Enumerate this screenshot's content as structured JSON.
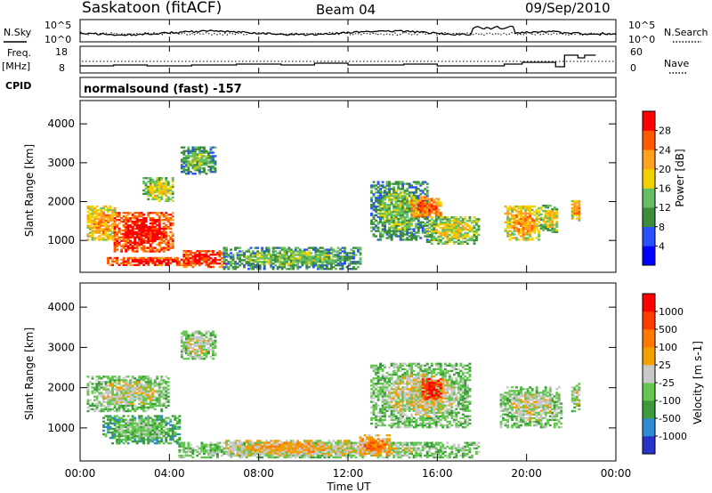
{
  "header": {
    "station": "Saskatoon (fitACF)",
    "beam": "Beam 04",
    "date": "09/Sep/2010"
  },
  "control_panels": {
    "nsky_label": "N.Sky",
    "nsearch_label": "N.Search",
    "nsky_ticks": [
      "10^5",
      "10^0"
    ],
    "nsearch_ticks": [
      "10^5",
      "10^0"
    ],
    "freq_label_1": "Freq.",
    "freq_label_2": "[MHz]",
    "freq_ticks": [
      "18",
      "8"
    ],
    "nave_label": "Nave",
    "nave_ticks": [
      "60",
      "0"
    ],
    "cpid_label": "CPID",
    "cpid_text": "normalsound (fast) -157"
  },
  "chart_data": [
    {
      "type": "heatmap",
      "name": "Power",
      "ylabel": "Slant Range [km]",
      "yticks": [
        "1000",
        "2000",
        "3000",
        "4000"
      ],
      "ylim": [
        180,
        4600
      ],
      "colorbar_label": "Power [dB]",
      "colorbar_ticks": [
        "4",
        "8",
        "12",
        "16",
        "20",
        "24",
        "28"
      ],
      "colorbar_colors": [
        "#0000ff",
        "#2850ff",
        "#3c8c3c",
        "#64be64",
        "#f0d200",
        "#ffa01e",
        "#ff5a00",
        "#ff0000"
      ],
      "blobs": [
        {
          "h0": 0.3,
          "h1": 1.6,
          "r0": 1000,
          "r1": 1900,
          "c": 5
        },
        {
          "h0": 1.5,
          "h1": 4.2,
          "r0": 700,
          "r1": 1700,
          "c": 7
        },
        {
          "h0": 2.8,
          "h1": 4.2,
          "r0": 2000,
          "r1": 2600,
          "c": 4
        },
        {
          "h0": 4.5,
          "h1": 6.0,
          "r0": 2700,
          "r1": 3400,
          "c": 3
        },
        {
          "h0": 1.2,
          "h1": 5.0,
          "r0": 350,
          "r1": 550,
          "c": 7
        },
        {
          "h0": 4.6,
          "h1": 6.4,
          "r0": 300,
          "r1": 750,
          "c": 7
        },
        {
          "h0": 6.4,
          "h1": 12.5,
          "r0": 250,
          "r1": 800,
          "c": 3
        },
        {
          "h0": 13.0,
          "h1": 15.5,
          "r0": 1000,
          "r1": 2500,
          "c": 3
        },
        {
          "h0": 14.8,
          "h1": 16.2,
          "r0": 1600,
          "r1": 2100,
          "c": 6
        },
        {
          "h0": 15.5,
          "h1": 17.9,
          "r0": 900,
          "r1": 1600,
          "c": 4
        },
        {
          "h0": 19.0,
          "h1": 20.6,
          "r0": 1000,
          "r1": 1900,
          "c": 5
        },
        {
          "h0": 20.6,
          "h1": 21.4,
          "r0": 1200,
          "r1": 1900,
          "c": 4
        },
        {
          "h0": 22.0,
          "h1": 22.4,
          "r0": 1500,
          "r1": 2000,
          "c": 5
        }
      ]
    },
    {
      "type": "heatmap",
      "name": "Velocity",
      "ylabel": "Slant Range [km]",
      "yticks": [
        "1000",
        "2000",
        "3000",
        "4000"
      ],
      "ylim": [
        180,
        4600
      ],
      "colorbar_label": "Velocity [m s-1]",
      "colorbar_ticks": [
        "1000",
        "500",
        "100",
        "25",
        "-25",
        "-100",
        "-500",
        "-1000"
      ],
      "colorbar_colors": [
        "#2832c8",
        "#328ad2",
        "#3c9c3c",
        "#64c850",
        "#c8c8c8",
        "#f0a000",
        "#ff7800",
        "#ff3c00",
        "#ff0000"
      ],
      "blobs": [
        {
          "h0": 0.3,
          "h1": 4.0,
          "r0": 1400,
          "r1": 2300,
          "c": 4
        },
        {
          "h0": 1.0,
          "h1": 4.5,
          "r0": 600,
          "r1": 1300,
          "c": 3
        },
        {
          "h0": 4.5,
          "h1": 6.0,
          "r0": 2700,
          "r1": 3400,
          "c": 4
        },
        {
          "h0": 4.4,
          "h1": 17.8,
          "r0": 250,
          "r1": 650,
          "c": 4
        },
        {
          "h0": 6.5,
          "h1": 12.0,
          "r0": 300,
          "r1": 700,
          "c": 5
        },
        {
          "h0": 12.5,
          "h1": 13.8,
          "r0": 300,
          "r1": 800,
          "c": 6
        },
        {
          "h0": 13.0,
          "h1": 17.5,
          "r0": 1000,
          "r1": 2600,
          "c": 4
        },
        {
          "h0": 15.3,
          "h1": 16.2,
          "r0": 1700,
          "r1": 2200,
          "c": 8
        },
        {
          "h0": 18.8,
          "h1": 21.6,
          "r0": 1000,
          "r1": 2000,
          "c": 4
        },
        {
          "h0": 22.0,
          "h1": 22.4,
          "r0": 1400,
          "r1": 2100,
          "c": 4
        }
      ]
    }
  ],
  "x_axis": {
    "label": "Time UT",
    "ticks": [
      "00:00",
      "04:00",
      "08:00",
      "12:00",
      "16:00",
      "20:00",
      "00:00"
    ],
    "xlim_hours": [
      0,
      24
    ]
  }
}
